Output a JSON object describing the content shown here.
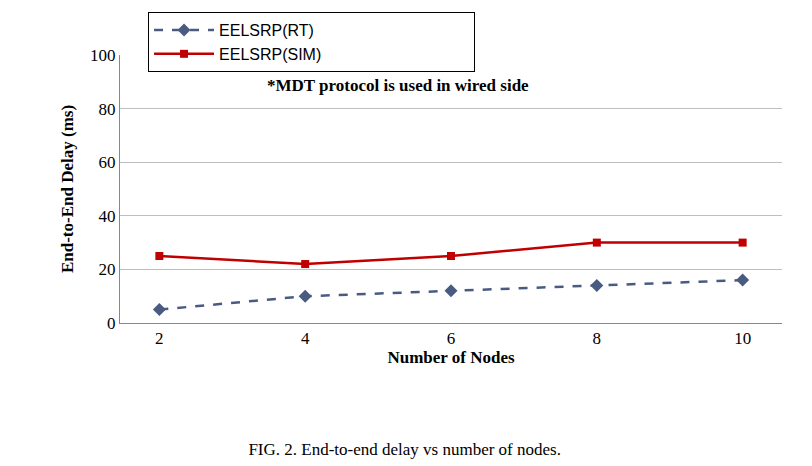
{
  "chart_data": {
    "type": "line",
    "title": "FIG. 2. End-to-end delay vs number of nodes.",
    "x_label": "Number of Nodes",
    "y_label": "End-to-End Delay (ms)",
    "annotations": [
      "*MDT protocol is used in wired side"
    ],
    "categories": [
      "2",
      "4",
      "6",
      "8",
      "10"
    ],
    "series": [
      {
        "name": "EELSRP(RT)",
        "color": "#4a5b82",
        "marker": "diamond",
        "line_style": "dash",
        "values": [
          5,
          10,
          12,
          14,
          16
        ]
      },
      {
        "name": "EELSRP(SIM)",
        "color": "#c00000",
        "marker": "square",
        "line_style": "solid",
        "values": [
          25,
          22,
          25,
          30,
          30
        ]
      }
    ],
    "ylim": [
      0,
      100
    ],
    "yticks": [
      0,
      20,
      40,
      60,
      80,
      100
    ],
    "grid": true,
    "legend": "top"
  }
}
